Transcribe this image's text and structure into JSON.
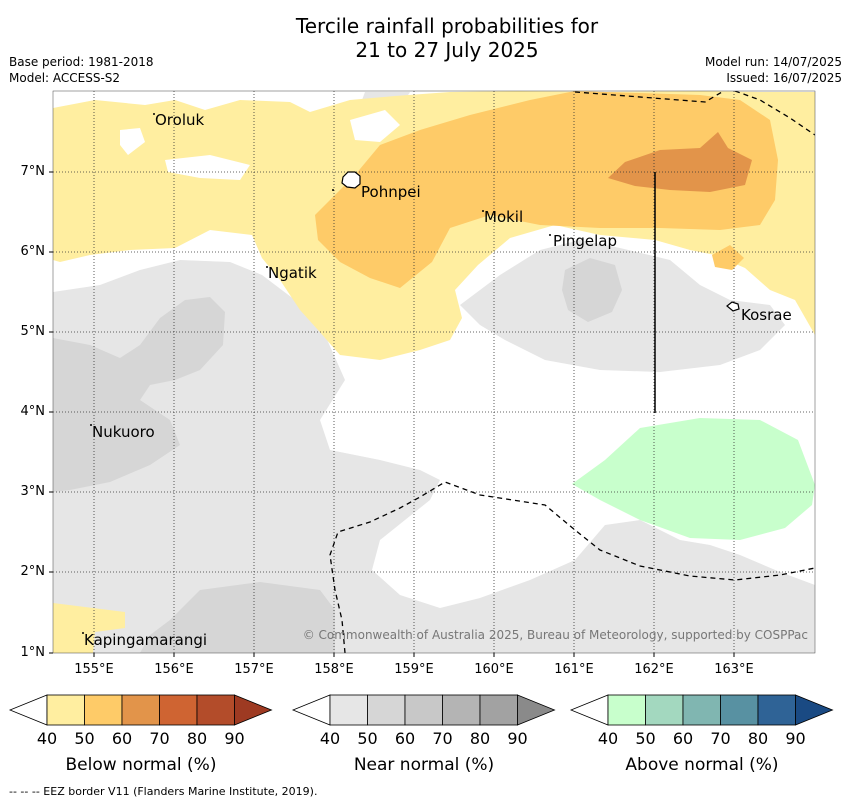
{
  "header": {
    "title_line1": "Tercile rainfall probabilities for",
    "title_line2": "21 to 27 July 2025",
    "base_period": "Base period: 1981-2018",
    "model": "Model: ACCESS-S2",
    "model_run": "Model run: 14/07/2025",
    "issued": "Issued: 16/07/2025"
  },
  "map": {
    "lon_ticks": [
      "155°E",
      "156°E",
      "157°E",
      "158°E",
      "159°E",
      "160°E",
      "161°E",
      "162°E",
      "163°E"
    ],
    "lat_ticks": [
      "7°N",
      "6°N",
      "5°N",
      "4°N",
      "3°N",
      "2°N",
      "1°N"
    ],
    "places": [
      {
        "name": "Oroluk"
      },
      {
        "name": "Pohnpei"
      },
      {
        "name": "Mokil"
      },
      {
        "name": "Pingelap"
      },
      {
        "name": "Ngatik"
      },
      {
        "name": "Kosrae"
      },
      {
        "name": "Nukuoro"
      },
      {
        "name": "Kapingamarangi"
      }
    ],
    "credit": "© Commonwealth of Australia 2025, Bureau of Meteorology, supported by COSPPac"
  },
  "colorbars": [
    {
      "label": "Below normal (%)",
      "ticks": [
        "40",
        "50",
        "60",
        "70",
        "80",
        "90"
      ],
      "colors": [
        "#ffeea0",
        "#fecb68",
        "#e2944a",
        "#cf6432",
        "#b34c2a",
        "#9e3a22"
      ]
    },
    {
      "label": "Near normal (%)",
      "ticks": [
        "40",
        "50",
        "60",
        "70",
        "80",
        "90"
      ],
      "colors": [
        "#e6e6e6",
        "#d6d6d6",
        "#c8c8c8",
        "#b4b4b4",
        "#a2a2a2",
        "#8a8a8a"
      ]
    },
    {
      "label": "Above normal (%)",
      "ticks": [
        "40",
        "50",
        "60",
        "70",
        "80",
        "90"
      ],
      "colors": [
        "#c8ffcc",
        "#a3d8bf",
        "#80b6b1",
        "#5891a2",
        "#2f6396",
        "#1a4a83"
      ]
    }
  ],
  "footer": "-- -- -- EEZ border V11 (Flanders Marine Institute, 2019)."
}
